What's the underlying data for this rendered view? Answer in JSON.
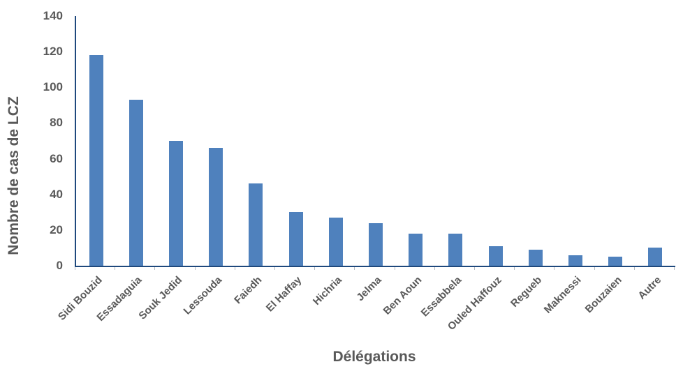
{
  "chart_data": {
    "type": "bar",
    "title": "",
    "xlabel": "Délégations",
    "ylabel": "Nombre de cas de LCZ",
    "categories": [
      "Sidi Bouzid",
      "Essadaguia",
      "Souk Jedid",
      "Lessouda",
      "Faiedh",
      "El Haffay",
      "Hichria",
      "Jelma",
      "Ben Aoun",
      "Essabbela",
      "Ouled Haffouz",
      "Regueb",
      "Maknessi",
      "Bouzaien",
      "Autre"
    ],
    "values": [
      118,
      93,
      70,
      66,
      46,
      30,
      27,
      24,
      18,
      18,
      11,
      9,
      6,
      5,
      10
    ],
    "ylim": [
      0,
      140
    ],
    "yticks": [
      0,
      20,
      40,
      60,
      80,
      100,
      120,
      140
    ],
    "grid": false,
    "legend": false,
    "bar_color": "#4F81BD",
    "axis_color": "#1F497D",
    "text_color": "#595959"
  }
}
